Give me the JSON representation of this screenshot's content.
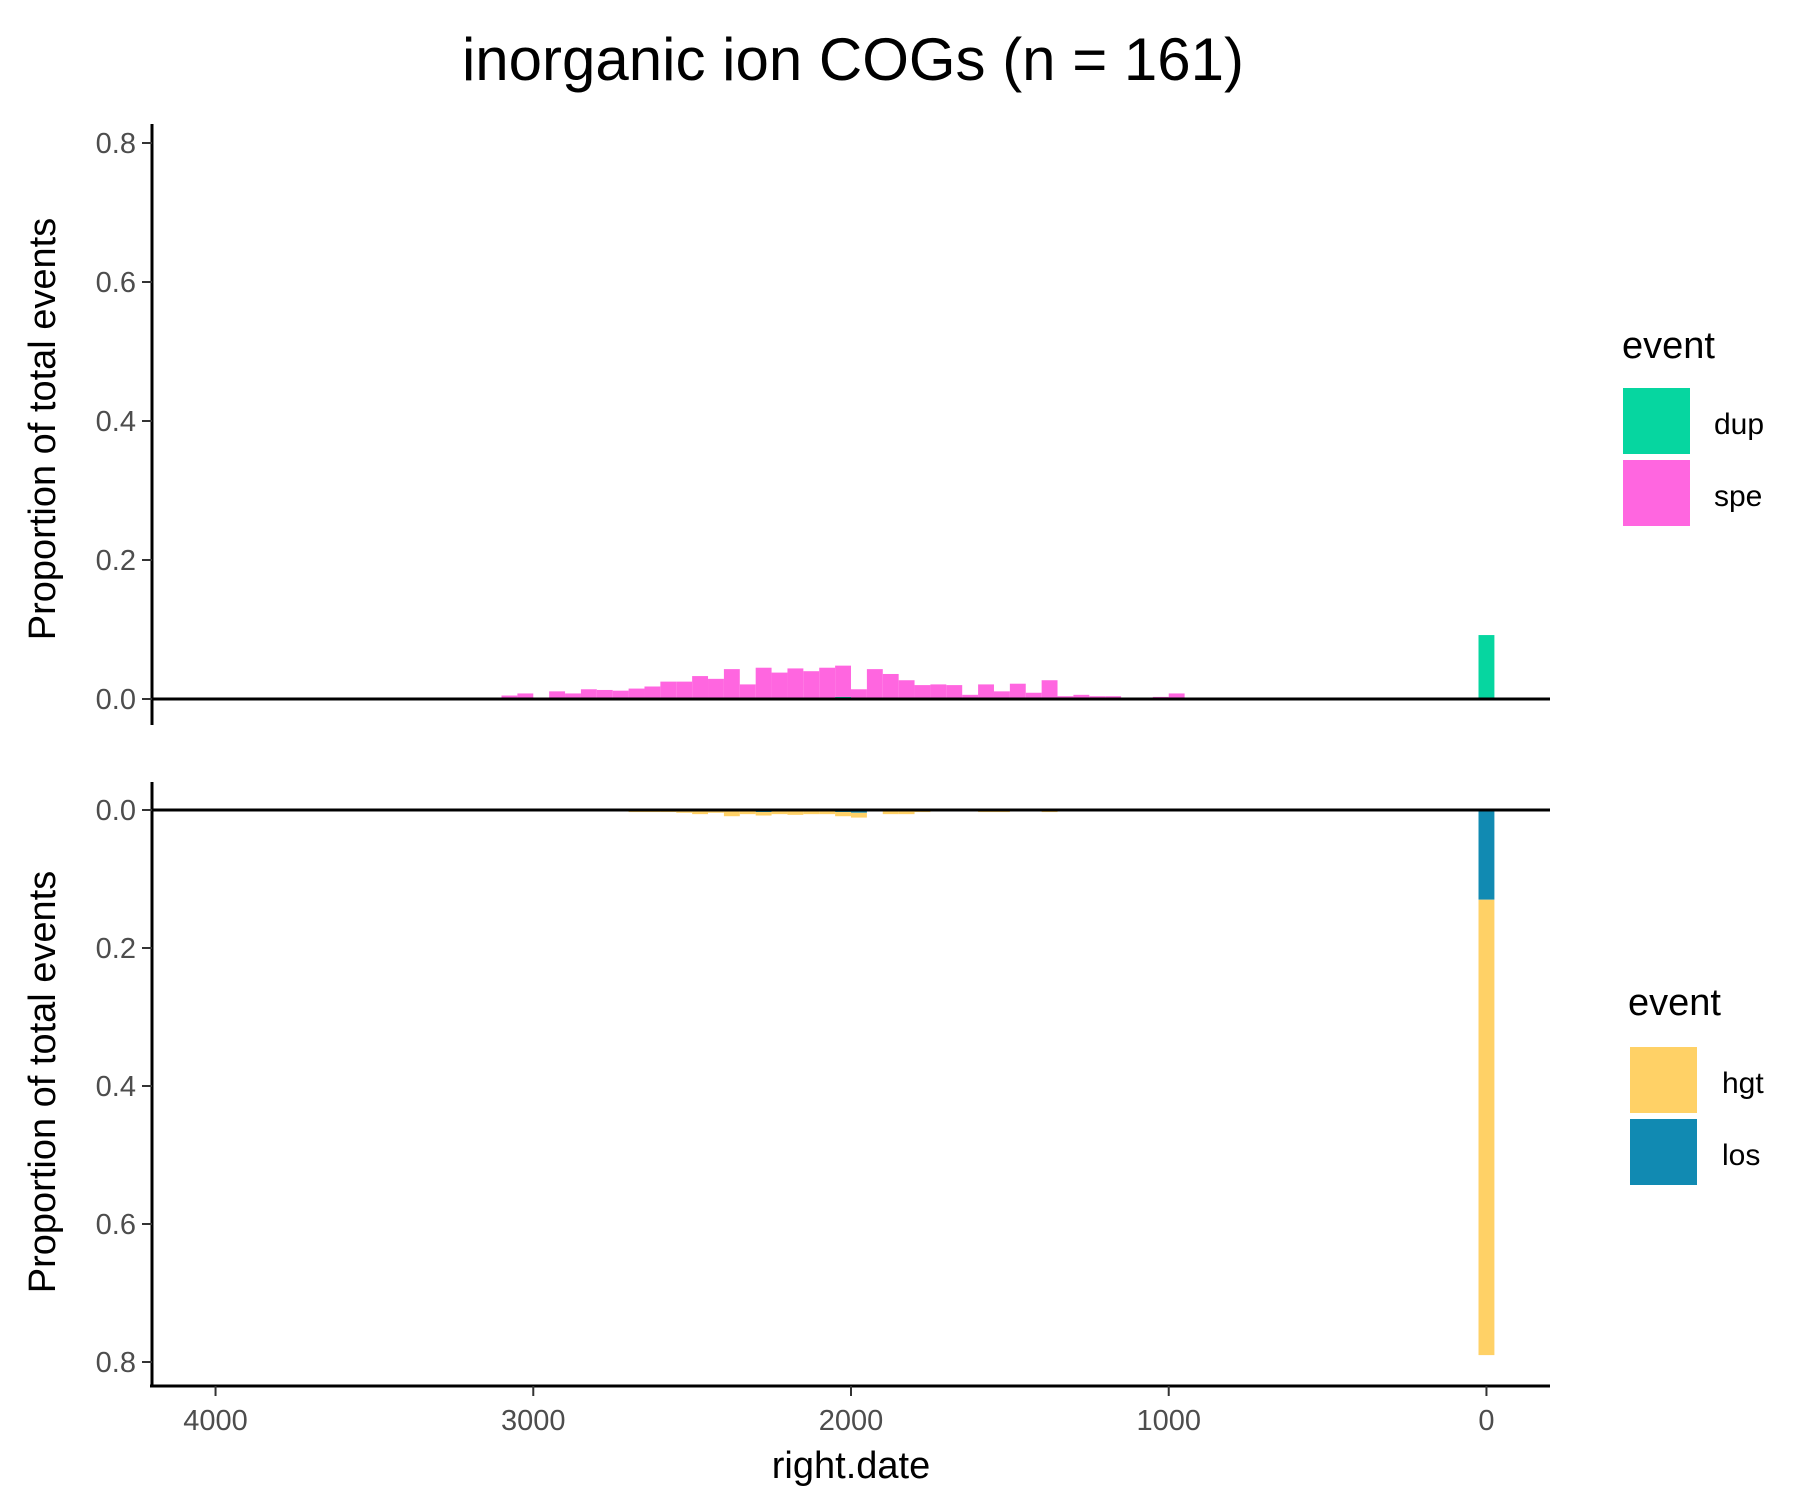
{
  "chart_data": {
    "type": "bar",
    "title": "inorganic ion COGs (n = 161)",
    "xlabel": "right.date",
    "x_reversed": true,
    "xlim": [
      4200,
      -200
    ],
    "x_ticks": [
      4000,
      3000,
      2000,
      1000,
      0
    ],
    "bin_width": 50,
    "colors": {
      "dup": "#06d6a0",
      "spe": "#ff66e0",
      "hgt": "#ffd166",
      "los": "#118ab2"
    },
    "panels": [
      {
        "ylabel": "Proportion of total events",
        "ylim": [
          0,
          0.82
        ],
        "y_ticks": [
          "0.0",
          "0.2",
          "0.4",
          "0.6",
          "0.8"
        ],
        "y_tick_values": [
          0,
          0.2,
          0.4,
          0.6,
          0.8
        ],
        "y_reversed": false,
        "legend": {
          "title": "event",
          "items": [
            "dup",
            "spe"
          ]
        },
        "series": [
          {
            "name": "spe",
            "stack_order": 1,
            "x": [
              3075,
              3025,
              2925,
              2875,
              2825,
              2775,
              2725,
              2675,
              2625,
              2575,
              2525,
              2475,
              2425,
              2375,
              2325,
              2275,
              2225,
              2175,
              2125,
              2075,
              2025,
              1975,
              1925,
              1875,
              1825,
              1775,
              1725,
              1675,
              1625,
              1575,
              1525,
              1475,
              1425,
              1375,
              1325,
              1275,
              1225,
              1175,
              1125,
              1075,
              1025,
              975
            ],
            "values": [
              0.005,
              0.006,
              0.01,
              0.008,
              0.013,
              0.013,
              0.012,
              0.015,
              0.018,
              0.025,
              0.025,
              0.033,
              0.027,
              0.043,
              0.02,
              0.045,
              0.038,
              0.042,
              0.04,
              0.045,
              0.045,
              0.012,
              0.043,
              0.036,
              0.027,
              0.02,
              0.021,
              0.02,
              0.004,
              0.021,
              0.011,
              0.021,
              0.009,
              0.027,
              0.004,
              0.006,
              0.004,
              0.004,
              0.002,
              0.002,
              0.003,
              0.008
            ]
          },
          {
            "name": "dup",
            "stack_order": 0,
            "x": [
              3025,
              2925,
              2825,
              2425,
              2325,
              2175,
              2025,
              1975,
              1625,
              1475,
              0
            ],
            "values": [
              0.002,
              0.001,
              0.001,
              0.002,
              0.001,
              0.002,
              0.003,
              0.002,
              0.002,
              0.001,
              0.092
            ]
          }
        ]
      },
      {
        "ylabel": "Proportion of total events",
        "ylim": [
          0,
          0.83
        ],
        "y_ticks": [
          "0.0",
          "0.2",
          "0.4",
          "0.6",
          "0.8"
        ],
        "y_tick_values": [
          0,
          0.2,
          0.4,
          0.6,
          0.8
        ],
        "y_reversed": true,
        "legend": {
          "title": "event",
          "items": [
            "hgt",
            "los"
          ]
        },
        "series": [
          {
            "name": "los",
            "stack_order": 0,
            "x": [
              2375,
              2275,
              2175,
              2025,
              1975,
              1875,
              1825,
              1525,
              0
            ],
            "values": [
              0.002,
              0.003,
              0.002,
              0.003,
              0.004,
              0.002,
              0.002,
              0.001,
              0.13
            ]
          },
          {
            "name": "hgt",
            "stack_order": 1,
            "x": [
              2675,
              2625,
              2575,
              2525,
              2475,
              2425,
              2375,
              2325,
              2275,
              2225,
              2175,
              2125,
              2075,
              2025,
              1975,
              1925,
              1875,
              1825,
              1775,
              1725,
              1675,
              1625,
              1575,
              1525,
              1475,
              1425,
              1375,
              0
            ],
            "values": [
              0.003,
              0.003,
              0.003,
              0.004,
              0.006,
              0.004,
              0.007,
              0.006,
              0.005,
              0.006,
              0.005,
              0.006,
              0.006,
              0.006,
              0.007,
              0.002,
              0.004,
              0.004,
              0.003,
              0.002,
              0.002,
              0.002,
              0.003,
              0.002,
              0.002,
              0.002,
              0.003,
              0.66
            ]
          }
        ]
      }
    ]
  }
}
